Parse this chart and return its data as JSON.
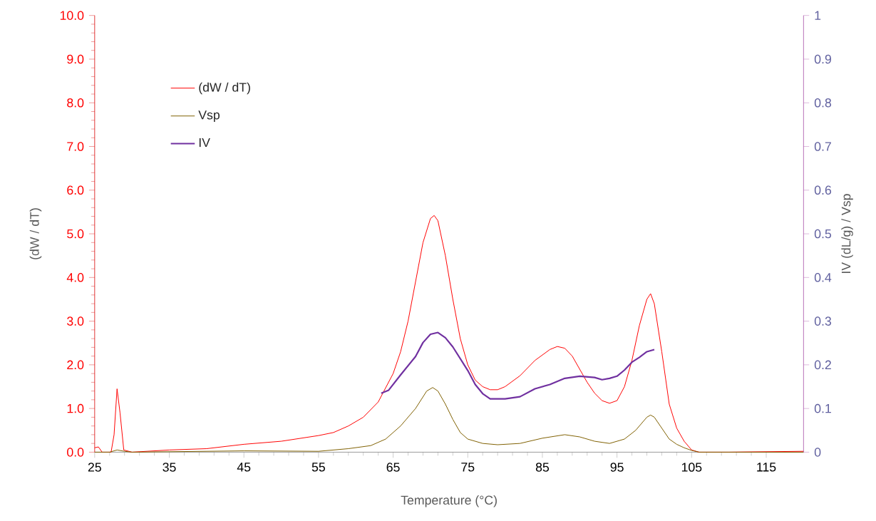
{
  "chart_data": {
    "type": "line",
    "xlabel": "Temperature (°C)",
    "ylabel": "(dW / dT)",
    "y2label": "IV (dL/g) / Vsp",
    "xlim": [
      25,
      120
    ],
    "xticks": [
      25,
      35,
      45,
      55,
      65,
      75,
      85,
      95,
      105,
      115
    ],
    "ylim": [
      0,
      10
    ],
    "yticks": [
      {
        "value": 0,
        "label": "0.0"
      },
      {
        "value": 1,
        "label": "1.0"
      },
      {
        "value": 2,
        "label": "2.0"
      },
      {
        "value": 3,
        "label": "3.0"
      },
      {
        "value": 4,
        "label": "4.0"
      },
      {
        "value": 5,
        "label": "5.0"
      },
      {
        "value": 6,
        "label": "6.0"
      },
      {
        "value": 7,
        "label": "7.0"
      },
      {
        "value": 8,
        "label": "8.0"
      },
      {
        "value": 9,
        "label": "9.0"
      },
      {
        "value": 10,
        "label": "10.0"
      }
    ],
    "y2lim": [
      0,
      1
    ],
    "y2ticks": [
      0,
      0.1,
      0.2,
      0.3,
      0.4,
      0.5,
      0.6,
      0.7,
      0.8,
      0.9,
      1
    ],
    "legend": "top left",
    "grid": false,
    "series": [
      {
        "name": "(dW / dT)",
        "color": "#ff0000",
        "x": [
          25,
          25.5,
          26,
          27.2,
          27.6,
          28,
          28.4,
          28.9,
          30,
          32,
          35,
          40,
          45,
          50,
          55,
          57,
          59,
          61,
          63,
          65,
          66,
          67,
          68,
          69,
          70,
          70.5,
          71,
          72,
          73,
          74,
          75,
          76,
          77,
          78,
          79,
          80,
          82,
          84,
          86,
          87,
          88,
          89,
          90,
          91,
          92,
          93,
          94,
          95,
          96,
          97,
          98,
          99,
          99.5,
          100,
          101,
          102,
          103,
          104,
          105,
          106,
          110,
          115,
          120
        ],
        "values": [
          0.1,
          0.12,
          0.0,
          0.0,
          0.4,
          1.45,
          0.9,
          0.05,
          0.0,
          0.02,
          0.05,
          0.08,
          0.18,
          0.25,
          0.38,
          0.45,
          0.6,
          0.8,
          1.15,
          1.8,
          2.3,
          3.0,
          3.9,
          4.8,
          5.35,
          5.42,
          5.3,
          4.5,
          3.5,
          2.6,
          2.0,
          1.65,
          1.5,
          1.43,
          1.43,
          1.5,
          1.75,
          2.1,
          2.35,
          2.42,
          2.38,
          2.2,
          1.9,
          1.6,
          1.35,
          1.18,
          1.12,
          1.18,
          1.5,
          2.1,
          2.9,
          3.5,
          3.63,
          3.4,
          2.3,
          1.1,
          0.55,
          0.25,
          0.05,
          0.0,
          0.0,
          0.01,
          0.02
        ]
      },
      {
        "name": "Vsp",
        "color": "#7f6000",
        "axis": "y2",
        "x": [
          25,
          27,
          28,
          29,
          30,
          45,
          55,
          59,
          62,
          64,
          66,
          68,
          69.5,
          70.3,
          71,
          72,
          73,
          74,
          75,
          77,
          79,
          82,
          85,
          88,
          90,
          92,
          94,
          96,
          97.5,
          99,
          99.5,
          100,
          101,
          102,
          103,
          104,
          105,
          106,
          120
        ],
        "values": [
          0,
          0,
          0.005,
          0.002,
          0,
          0.003,
          0.002,
          0.008,
          0.015,
          0.03,
          0.06,
          0.1,
          0.14,
          0.148,
          0.14,
          0.11,
          0.075,
          0.045,
          0.03,
          0.02,
          0.017,
          0.02,
          0.032,
          0.04,
          0.035,
          0.025,
          0.02,
          0.03,
          0.05,
          0.08,
          0.085,
          0.08,
          0.055,
          0.03,
          0.018,
          0.01,
          0.004,
          0,
          0
        ]
      },
      {
        "name": "IV",
        "color": "#7030a0",
        "axis": "y2",
        "x": [
          63.4,
          64.4,
          66,
          68,
          69,
          70,
          71,
          72,
          73,
          74,
          75,
          76,
          77,
          78,
          80,
          82,
          84,
          86,
          88,
          90,
          92,
          93,
          94,
          95,
          96,
          97,
          98,
          99,
          100
        ],
        "values": [
          0.135,
          0.142,
          0.177,
          0.219,
          0.251,
          0.27,
          0.274,
          0.262,
          0.241,
          0.214,
          0.187,
          0.155,
          0.134,
          0.122,
          0.122,
          0.127,
          0.145,
          0.155,
          0.169,
          0.174,
          0.171,
          0.166,
          0.169,
          0.174,
          0.188,
          0.206,
          0.217,
          0.23,
          0.235
        ]
      }
    ]
  }
}
